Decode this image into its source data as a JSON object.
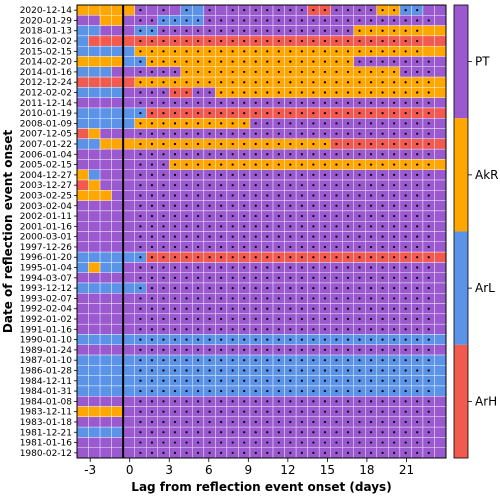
{
  "chart_data": {
    "type": "heatmap",
    "xlabel": "Lag from reflection event onset (days)",
    "ylabel": "Date of reflection event onset",
    "x_ticks": [
      -3,
      0,
      3,
      6,
      9,
      12,
      15,
      18,
      21
    ],
    "x_tick_labels": [
      "-3",
      "0",
      "3",
      "6",
      "9",
      "12",
      "15",
      "18",
      "21"
    ],
    "xlim": [
      -4,
      24
    ],
    "onset_line_lag": -0.5,
    "categories": [
      "PT",
      "AkR",
      "ArL",
      "ArH"
    ],
    "colors": {
      "PT": "#9b59d0",
      "AkR": "#ffa600",
      "ArL": "#5b93e8",
      "ArH": "#f25a50"
    },
    "dates": [
      "2020-12-14",
      "2020-01-29",
      "2018-01-13",
      "2016-02-02",
      "2015-02-15",
      "2014-02-20",
      "2014-01-16",
      "2012-12-24",
      "2012-02-02",
      "2011-12-14",
      "2010-01-19",
      "2008-01-09",
      "2007-12-05",
      "2007-01-22",
      "2006-01-04",
      "2005-02-15",
      "2004-12-27",
      "2003-12-27",
      "2003-02-25",
      "2003-02-04",
      "2002-01-11",
      "2001-01-16",
      "2000-03-01",
      "1997-12-26",
      "1996-01-20",
      "1995-01-04",
      "1994-03-07",
      "1993-12-12",
      "1993-02-07",
      "1992-02-04",
      "1992-01-02",
      "1991-01-16",
      "1990-01-10",
      "1989-01-24",
      "1987-01-10",
      "1986-01-28",
      "1984-12-11",
      "1984-01-31",
      "1984-01-08",
      "1983-12-11",
      "1983-01-18",
      "1981-12-21",
      "1981-01-16",
      "1980-02-12"
    ],
    "lag_start": -4,
    "cell_codes": [
      "BBBBBAAAACCAAAAAAAAADDAAAABBCCAA",
      "AABBAAACCCCAAAAAAAAAAAAAAAAAAAAA",
      "CCAAACCAAAAAAAAAAAAAAAAABBBBBBBB",
      "CDDDDDDDDDDDDDDDDDDDDDDDDDDDDDDD",
      "CCCCCBBBBBBBBBBBBBBBBBBBBBBBBBBB",
      "BBBBCCBBBBBBBBBBBBBBBBBBAAAAAAAA",
      "CCCAAAAAABBBBBBBBBBBBBBBBBBBAAAA",
      "DDDDDBBBBBBBBBBBBBBBBBBBBBBBBBBB",
      "CCCCAAAADDAABBBBBBBBBBBBBBBBBBBB",
      "AAAAAAAAAAAAAAAAAAAAAAAAAAAAAAAA",
      "CCCCCCDDDDDDDDDDDDDDDDDDDDDDDDDD",
      "CCCCCBBBBBBBBBBAAAAAAAAAAAAAAAAA",
      "DBAAAAAAAAAAAAAAAAAAAAAAAAAAAAAA",
      "CCBBBBBBBBBBBBBBBBBBBBDDDDDDDDDD",
      "AAAAAAAAAAAAAAAAAAAAAAAAAAAAAAAA",
      "AAAAAAAABBBBBBBBBBBBBBBBBBBBBBBB",
      "BCAAAAAAAAAAAAAAAAAAAAAAAAAAAAAA",
      "DBAAAAAAAAAAAAAAAAAAAAAAAAAAAAAA",
      "BBBAAAAAAAAAAAAAAAAAAAAAAAAAAAAA",
      "AAAAAAAAAAAAAAAAAAAAAAAAAAAAAAAA",
      "AAAAAAAAAAAAAAAAAAAAAAAAAAAAAAAA",
      "AAAAAAAAAAAAAAAAAAAAAAAAAAAAAAAA",
      "AAAAAAAAAAAAAAAAAAAAAAAAAAAAAAAA",
      "AAAAAAAAAAAAAAAAAAAAAAAAAAAAAAAA",
      "CCCCCCDDDDDDDDDDDDDDDDDDDDDDDDDD",
      "CBCCAAAAAAAAAAAAAAAAAAAAAAAAAAAA",
      "AAAAAAAAAAAAAAAAAAAAAAAAAAAAAAAA",
      "CCCCCCAAAAAAAAAAAAAAAAAAAAAAAAAA",
      "AAAAAAAAAAAAAAAAAAAAAAAAAAAAAAAA",
      "AAAAAAAAAAAAAAAAAAAAAAAAAAAAAAAA",
      "AAAAAAAAAAAAAAAAAAAAAAAAAAAAAAAA",
      "AAAAAAAAAAAAAAAAAAAAAAAAAAAAAAAA",
      "CCCCCCCCCCCCCCCCCCCCCCCCCCCCCCCC",
      "AAAAAAAAAAAAAAAAAAAAAAAAAAAAAAAA",
      "CCCCCCCCCCCCCCCCCCCCCCCCCCCCCCCC",
      "CCCCCCCCCCCCCCCCCCCCCCCCCCCCCCCC",
      "CCCCCCCCCCCCCCCCCCCCCCCCCCCCCCCC",
      "CCCCCCCCCCCCCCCCCCCCCCCCCCCCCCCC",
      "AAAAAAAAAAAAAAAAAAAAAAAAAAAAAAAA",
      "BBBBAAAAAAAAAAAAAAAAAAAAAAAAAAAA",
      "AAAAAAAAAAAAAAAAAAAAAAAAAAAAAAAA",
      "CCCCAAAAAAAAAAAAAAAAAAAAAAAAAAAA",
      "AAAAAAAAAAAAAAAAAAAAAAAAAAAAAAAA",
      "AAAAAAAAAAAAAAAAAAAAAAAAAAAAAAAA"
    ],
    "dot_codes": [
      "00000101010101111111111111111100",
      "00000111111111111111111111111110",
      "00000111111111111111111111111100",
      "00000111111111111111111111111100",
      "00000111111111111111111111111100",
      "00000111111111111111111111111110",
      "00000111111111111111111111111110",
      "00000111111111111111111111111110",
      "00000111111111111111111111111110",
      "00000111111111111111111111111110",
      "00000111111111111111111111111110",
      "00000111111111111111111111111110",
      "00000111111111111111111111111110",
      "00000111111111111111111111111110",
      "00000111111111111111111111111110",
      "00000111111111111111111111111110",
      "00000111111111111111111111111110",
      "00000111111111111111111111111110",
      "00000111111111111111111111111110",
      "00000111111111111111111111111110",
      "00000111111111111111111111111110",
      "00000111111111111111111111111110",
      "00000111111111111111111111111110",
      "00000111111111111111111111111110",
      "00000111111111111111111111111110",
      "00000111111111111111111111111110",
      "00000111111111111111111111111110",
      "00000111111111111111111111111110",
      "00000111111111111111111111111110",
      "00000111111111111111111111111110",
      "00000111111111111111111111111110",
      "00000111111111111111111111111110",
      "00000111111111111111111111111110",
      "00000111111111111111111111111110",
      "00000111111111111111111111111110",
      "00000111111111111111111111111110",
      "00000111111111111111111111111110",
      "00000111111111111111111111111110",
      "00000111111111111111111111111110",
      "00000111111111111111111111111110",
      "00000111111111111111111111111110",
      "00000111111111111111111111111110",
      "00000111111111111111111111111110",
      "00000111111111111111111111111110"
    ],
    "grid": true,
    "legend_placement": "right"
  }
}
